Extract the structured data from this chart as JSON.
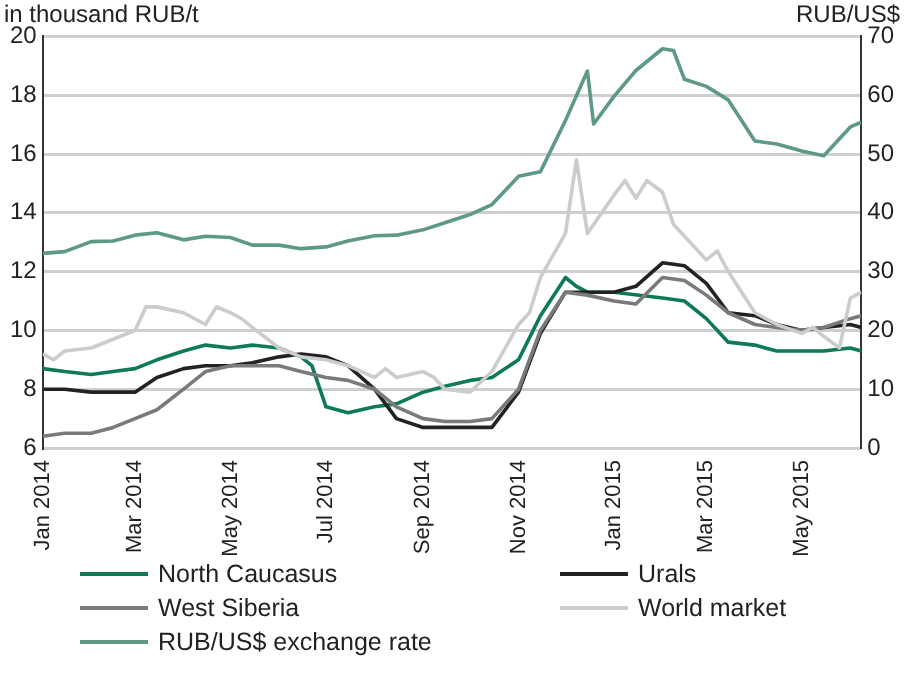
{
  "chart_data": {
    "type": "line",
    "ylabel": "in thousand RUB/t",
    "y2label": "RUB/US$",
    "xlim": [
      "2014-01-01",
      "2015-06-08"
    ],
    "xticks": [
      {
        "value": "2014-01-01",
        "label": "Jan 2014"
      },
      {
        "value": "2014-03-01",
        "label": "Mar 2014"
      },
      {
        "value": "2014-05-01",
        "label": "May 2014"
      },
      {
        "value": "2014-07-01",
        "label": "Jul 2014"
      },
      {
        "value": "2014-09-01",
        "label": "Sep 2014"
      },
      {
        "value": "2014-11-01",
        "label": "Nov 2014"
      },
      {
        "value": "2015-01-01",
        "label": "Jan 2015"
      },
      {
        "value": "2015-03-01",
        "label": "Mar 2015"
      },
      {
        "value": "2015-05-01",
        "label": "May 2015"
      }
    ],
    "ylim": [
      6,
      20
    ],
    "yticks": [
      6,
      8,
      10,
      12,
      14,
      16,
      18,
      20
    ],
    "y2lim": [
      0,
      70
    ],
    "y2ticks": [
      0,
      10,
      20,
      30,
      40,
      50,
      60,
      70
    ],
    "grid": "y",
    "legend": "bottom",
    "marker": "none",
    "series": [
      {
        "name": "North Caucasus",
        "color": "#0e7a5a",
        "x": [
          "2014-01-01",
          "2014-01-15",
          "2014-02-01",
          "2014-02-15",
          "2014-03-01",
          "2014-03-15",
          "2014-04-01",
          "2014-04-15",
          "2014-05-01",
          "2014-05-15",
          "2014-06-01",
          "2014-06-15",
          "2014-06-22",
          "2014-07-01",
          "2014-07-15",
          "2014-08-01",
          "2014-08-15",
          "2014-09-01",
          "2014-09-15",
          "2014-10-01",
          "2014-10-15",
          "2014-11-01",
          "2014-11-15",
          "2014-12-01",
          "2014-12-08",
          "2014-12-15",
          "2015-01-01",
          "2015-02-01",
          "2015-02-15",
          "2015-03-01",
          "2015-03-15",
          "2015-04-01",
          "2015-04-15",
          "2015-05-01",
          "2015-05-15",
          "2015-06-01",
          "2015-06-08"
        ],
        "values": [
          8.7,
          8.6,
          8.5,
          8.6,
          8.7,
          9.0,
          9.3,
          9.5,
          9.4,
          9.5,
          9.4,
          9.1,
          8.8,
          7.4,
          7.2,
          7.4,
          7.5,
          7.9,
          8.1,
          8.3,
          8.4,
          9.0,
          10.5,
          11.8,
          11.5,
          11.3,
          11.3,
          11.1,
          11.0,
          10.4,
          9.6,
          9.5,
          9.3,
          9.3,
          9.3,
          9.4,
          9.3
        ]
      },
      {
        "name": "Urals",
        "color": "#222222",
        "x": [
          "2014-01-01",
          "2014-01-15",
          "2014-02-01",
          "2014-02-15",
          "2014-03-01",
          "2014-03-15",
          "2014-04-01",
          "2014-04-15",
          "2014-05-01",
          "2014-05-15",
          "2014-06-01",
          "2014-06-15",
          "2014-07-01",
          "2014-07-15",
          "2014-08-01",
          "2014-08-15",
          "2014-09-01",
          "2014-09-15",
          "2014-10-01",
          "2014-10-15",
          "2014-11-01",
          "2014-11-15",
          "2014-12-01",
          "2014-12-15",
          "2015-01-01",
          "2015-01-15",
          "2015-02-01",
          "2015-02-15",
          "2015-03-01",
          "2015-03-15",
          "2015-04-01",
          "2015-04-15",
          "2015-05-01",
          "2015-05-15",
          "2015-06-01",
          "2015-06-08"
        ],
        "values": [
          8.0,
          8.0,
          7.9,
          7.9,
          7.9,
          8.4,
          8.7,
          8.8,
          8.8,
          8.9,
          9.1,
          9.2,
          9.1,
          8.8,
          8.0,
          7.0,
          6.7,
          6.7,
          6.7,
          6.7,
          7.9,
          9.9,
          11.3,
          11.3,
          11.3,
          11.5,
          12.3,
          12.2,
          11.6,
          10.6,
          10.5,
          10.2,
          10.0,
          10.1,
          10.2,
          10.1
        ]
      },
      {
        "name": "West Siberia",
        "color": "#7a7a7a",
        "x": [
          "2014-01-01",
          "2014-01-15",
          "2014-02-01",
          "2014-02-15",
          "2014-03-01",
          "2014-03-15",
          "2014-04-01",
          "2014-04-15",
          "2014-05-01",
          "2014-05-15",
          "2014-06-01",
          "2014-06-15",
          "2014-07-01",
          "2014-07-15",
          "2014-08-01",
          "2014-08-15",
          "2014-09-01",
          "2014-09-15",
          "2014-10-01",
          "2014-10-15",
          "2014-11-01",
          "2014-11-15",
          "2014-12-01",
          "2014-12-15",
          "2015-01-01",
          "2015-01-15",
          "2015-02-01",
          "2015-02-15",
          "2015-03-01",
          "2015-03-15",
          "2015-04-01",
          "2015-04-15",
          "2015-05-01",
          "2015-05-15",
          "2015-06-01",
          "2015-06-08"
        ],
        "values": [
          6.4,
          6.5,
          6.5,
          6.7,
          7.0,
          7.3,
          8.0,
          8.6,
          8.8,
          8.8,
          8.8,
          8.6,
          8.4,
          8.3,
          8.0,
          7.4,
          7.0,
          6.9,
          6.9,
          7.0,
          8.0,
          10.0,
          11.3,
          11.2,
          11.0,
          10.9,
          11.8,
          11.7,
          11.2,
          10.6,
          10.2,
          10.1,
          10.0,
          10.1,
          10.4,
          10.5
        ]
      },
      {
        "name": "World market",
        "color": "#cccccc",
        "x": [
          "2014-01-01",
          "2014-01-08",
          "2014-01-15",
          "2014-02-01",
          "2014-02-15",
          "2014-03-01",
          "2014-03-08",
          "2014-03-15",
          "2014-04-01",
          "2014-04-15",
          "2014-04-22",
          "2014-05-01",
          "2014-05-08",
          "2014-05-15",
          "2014-06-01",
          "2014-06-15",
          "2014-07-01",
          "2014-07-15",
          "2014-08-01",
          "2014-08-08",
          "2014-08-15",
          "2014-09-01",
          "2014-09-08",
          "2014-09-15",
          "2014-10-01",
          "2014-10-15",
          "2014-11-01",
          "2014-11-08",
          "2014-11-15",
          "2014-12-01",
          "2014-12-08",
          "2014-12-15",
          "2015-01-01",
          "2015-01-08",
          "2015-01-15",
          "2015-01-22",
          "2015-02-01",
          "2015-02-08",
          "2015-02-15",
          "2015-03-01",
          "2015-03-08",
          "2015-03-15",
          "2015-04-01",
          "2015-04-15",
          "2015-05-01",
          "2015-05-08",
          "2015-05-15",
          "2015-05-25",
          "2015-06-01",
          "2015-06-08"
        ],
        "values": [
          9.2,
          9.0,
          9.3,
          9.4,
          9.7,
          10.0,
          10.8,
          10.8,
          10.6,
          10.2,
          10.8,
          10.6,
          10.4,
          10.1,
          9.4,
          9.1,
          9.0,
          8.8,
          8.4,
          8.7,
          8.4,
          8.6,
          8.4,
          8.0,
          7.9,
          8.6,
          10.2,
          10.6,
          11.8,
          13.3,
          15.8,
          13.3,
          14.6,
          15.1,
          14.5,
          15.1,
          14.7,
          13.6,
          13.2,
          12.4,
          12.7,
          12.0,
          10.6,
          10.2,
          9.9,
          10.1,
          9.8,
          9.4,
          11.1,
          11.3
        ]
      },
      {
        "name": "RUB/US$ exchange rate",
        "color": "#5e9a82",
        "axis": "y2",
        "x": [
          "2014-01-01",
          "2014-01-15",
          "2014-02-01",
          "2014-02-15",
          "2014-03-01",
          "2014-03-15",
          "2014-04-01",
          "2014-04-15",
          "2014-05-01",
          "2014-05-15",
          "2014-06-01",
          "2014-06-15",
          "2014-07-01",
          "2014-07-15",
          "2014-08-01",
          "2014-08-15",
          "2014-09-01",
          "2014-09-15",
          "2014-10-01",
          "2014-10-15",
          "2014-11-01",
          "2014-11-15",
          "2014-12-01",
          "2014-12-15",
          "2014-12-19",
          "2015-01-01",
          "2015-01-15",
          "2015-02-01",
          "2015-02-08",
          "2015-02-15",
          "2015-03-01",
          "2015-03-15",
          "2015-04-01",
          "2015-04-15",
          "2015-05-01",
          "2015-05-15",
          "2015-06-01",
          "2015-06-08"
        ],
        "values": [
          33.1,
          33.4,
          35.1,
          35.2,
          36.2,
          36.6,
          35.4,
          36.0,
          35.8,
          34.5,
          34.5,
          33.9,
          34.2,
          35.2,
          36.1,
          36.2,
          37.1,
          38.3,
          39.7,
          41.4,
          46.2,
          47.0,
          55.7,
          64.1,
          55.1,
          59.8,
          64.2,
          67.9,
          67.6,
          62.7,
          61.5,
          59.2,
          52.2,
          51.7,
          50.5,
          49.7,
          54.6,
          55.4
        ]
      }
    ]
  }
}
